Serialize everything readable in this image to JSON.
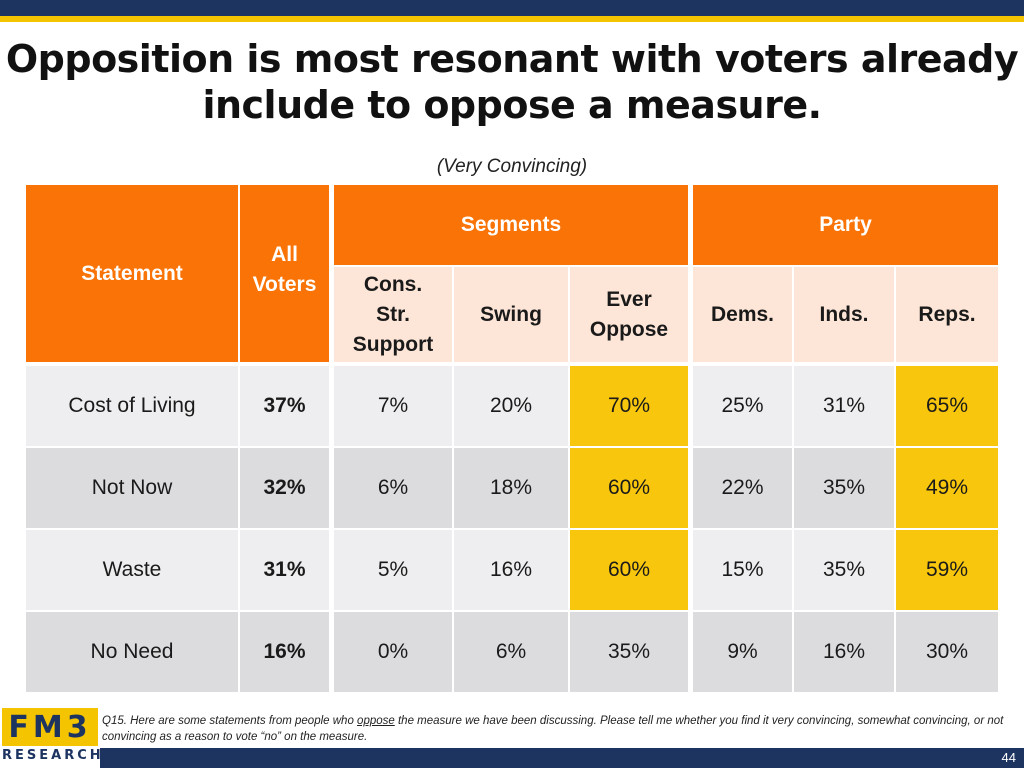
{
  "title": "Opposition is most resonant with voters already include to oppose a measure.",
  "subtitle": "(Very Convincing)",
  "chart_data": {
    "type": "table",
    "header_groups": {
      "statement": "Statement",
      "all_voters": "All Voters",
      "segments": "Segments",
      "party": "Party"
    },
    "columns": [
      "All Voters",
      "Cons. Str. Support",
      "Swing",
      "Ever Oppose",
      "Dems.",
      "Inds.",
      "Reps."
    ],
    "column_labels": {
      "cons": "Cons. Str. Support",
      "swing": "Swing",
      "ever": "Ever Oppose",
      "dems": "Dems.",
      "inds": "Inds.",
      "reps": "Reps."
    },
    "rows": [
      {
        "statement": "Cost of Living",
        "values": [
          "37%",
          "7%",
          "20%",
          "70%",
          "25%",
          "31%",
          "65%"
        ],
        "highlight": [
          false,
          false,
          false,
          true,
          false,
          false,
          true
        ]
      },
      {
        "statement": "Not Now",
        "values": [
          "32%",
          "6%",
          "18%",
          "60%",
          "22%",
          "35%",
          "49%"
        ],
        "highlight": [
          false,
          false,
          false,
          true,
          false,
          false,
          true
        ]
      },
      {
        "statement": "Waste",
        "values": [
          "31%",
          "5%",
          "16%",
          "60%",
          "15%",
          "35%",
          "59%"
        ],
        "highlight": [
          false,
          false,
          false,
          true,
          false,
          false,
          true
        ]
      },
      {
        "statement": "No Need",
        "values": [
          "16%",
          "0%",
          "6%",
          "35%",
          "9%",
          "16%",
          "30%"
        ],
        "highlight": [
          false,
          false,
          false,
          false,
          false,
          false,
          false
        ]
      }
    ],
    "highlight_color": "#f8c60d",
    "header_color": "#f97306"
  },
  "footnote": {
    "before": "Q15. Here are some statements from people who ",
    "underlined": "oppose",
    "after": " the measure we have been discussing. Please tell me whether you find it very convincing, somewhat convincing, or not convincing as a reason to vote “no” on the measure."
  },
  "logo": {
    "main": "FM3",
    "sub": "RESEARCH"
  },
  "page_number": "44"
}
